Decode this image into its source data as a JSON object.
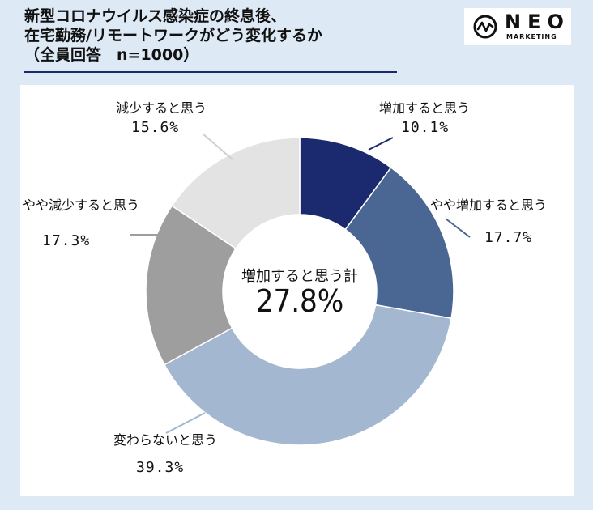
{
  "title": {
    "line1": "新型コロナウイルス感染症の終息後、",
    "line2": "在宅勤務/リモートワークがどう変化するか",
    "line3": "（全員回答　n=1000）"
  },
  "logo": {
    "name": "NEO",
    "sub": "MARKETING"
  },
  "chart_data": {
    "type": "pie",
    "donut": true,
    "unit": "%",
    "slices": [
      {
        "label": "増加すると思う",
        "value": 10.1,
        "value_text": "10.1%",
        "color": "#1b2a6e"
      },
      {
        "label": "やや増加すると思う",
        "value": 17.7,
        "value_text": "17.7%",
        "color": "#4a6693"
      },
      {
        "label": "変わらないと思う",
        "value": 39.3,
        "value_text": "39.3%",
        "color": "#a4b7d0"
      },
      {
        "label": "やや減少すると思う",
        "value": 17.3,
        "value_text": "17.3%",
        "color": "#9e9e9e"
      },
      {
        "label": "減少すると思う",
        "value": 15.6,
        "value_text": "15.6%",
        "color": "#e3e3e3"
      }
    ],
    "center": {
      "label": "増加すると思う計",
      "value_text": "27.8%"
    }
  }
}
